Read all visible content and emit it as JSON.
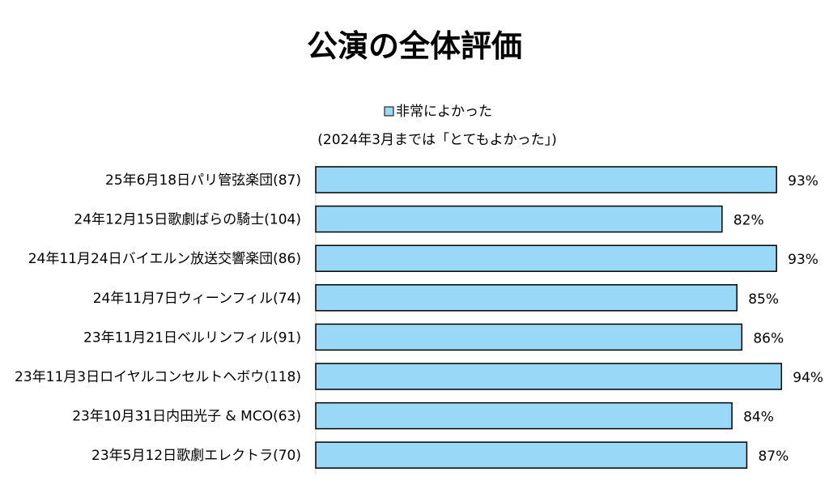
{
  "chart_data": {
    "type": "bar",
    "orientation": "horizontal",
    "title": "公演の全体評価",
    "legend": {
      "label": "非常によかった",
      "note": "(2024年3月までは「とてもよかった」)",
      "placement": "top"
    },
    "series": [
      {
        "name": "非常によかった",
        "color": "#99d9f7",
        "values": [
          93,
          82,
          93,
          85,
          86,
          94,
          84,
          87
        ],
        "value_labels": [
          "93%",
          "82%",
          "93%",
          "85%",
          "86%",
          "94%",
          "84%",
          "87%"
        ]
      }
    ],
    "categories": [
      "25年6月18日パリ管弦楽団(87)",
      "24年12月15日歌劇ばらの騎士(104)",
      "24年11月24日バイエルン放送交響楽団(86)",
      "24年11月7日ウィーンフィル(74)",
      "23年11月21日ベルリンフィル(91)",
      "23年11月3日ロイヤルコンセルトヘボウ(118)",
      "23年10月31日内田光子 & MCO(63)",
      "23年5月12日歌劇エレクトラ(70)"
    ],
    "xlim": [
      0,
      100
    ],
    "grid": false
  }
}
